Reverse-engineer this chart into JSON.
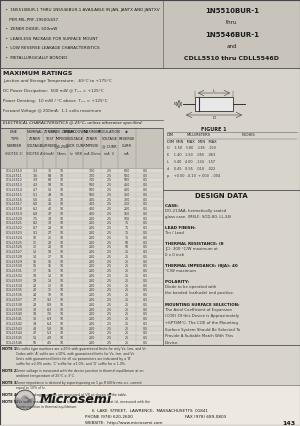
{
  "title_right_lines": [
    "1N5510BUR-1",
    "thru",
    "1N5546BUR-1",
    "and",
    "CDLL5510 thru CDLL5546D"
  ],
  "bullets": [
    "  •  1N5510BUR-1 THRU 1N5546BUR-1 AVAILABLE IN JAN, JANTX AND JANTXV",
    "     PER MIL-PRF-19500/437",
    "  •  ZENER DIODE, 500mW",
    "  •  LEADLESS PACKAGE FOR SURFACE MOUNT",
    "  •  LOW REVERSE LEAKAGE CHARACTERISTICS",
    "  •  METALLURGICALLY BONDED"
  ],
  "max_ratings_title": "MAXIMUM RATINGS",
  "max_ratings": [
    "Junction and Storage Temperature:  -65°C to +175°C",
    "DC Power Dissipation:  500 mW @ Tₘₓ = +125°C",
    "Power Derating:  10 mW / °C above  Tₘₓ = +125°C",
    "Forward Voltage @ 200mA:  1.1 volts maximum"
  ],
  "elec_char_title": "ELECTRICAL CHARACTERISTICS @ 25°C, unless otherwise specified.",
  "col_headers_line1": [
    "LINE",
    "NOMINAL",
    "ZENER",
    "KNEE ZENER",
    "BREAKDOWN VOLTAGE",
    "MAXIMUM",
    "REGULATION",
    "d.c. MAX"
  ],
  "col_headers_line2": [
    "TYPE",
    "ZENER",
    "TEST",
    "IMPEDANCE",
    "INCREMENTAL CURRENT",
    "ZENER",
    "VOLTAGE",
    "REVERSE"
  ],
  "col_headers_line3": [
    "NUMBER",
    "VOLTAGE",
    "CURRENT",
    "@0.25 Iz MAX",
    "",
    "IMPEDANCE",
    "@ CURRENT",
    "CURRENT"
  ],
  "col_headers_units": [
    "",
    "(VOLTS)",
    "Iz(mA)",
    "Ohms",
    "Iz  VBR(VOLTS)",
    "mA  Ohms",
    "mA  V",
    "mA"
  ],
  "design_data_title": "DESIGN DATA",
  "case_text": "CASE: DO-213AA, hermetically sealed\nglass case. (MELF, SOD-80, LL-34)",
  "lead_finish_text": "LEAD FINISH: Tin / Lead",
  "thermal_res_text": "THERMAL RESISTANCE: (θJC):\n300 °C/W maximum at 0 x 0 inch",
  "thermal_imp_text": "THERMAL IMPEDANCE: (θJA): 40\n°C/W maximum",
  "polarity_text": "POLARITY: Diode to be operated with\nthe banded (cathode) end positive.",
  "mounting_text": "MOUNTING SURFACE SELECTION:\nThe Axial Coefficient of Expansion\n(COE) Of this Device is Approximately\n+6PTSM°C. The COE of the Mounting\nSurface System Should Be Selected To\nProvide A Suitable Match With This\nDevice.",
  "figure_label": "FIGURE 1",
  "dim_header": [
    "DIM",
    "MILLIMETERS",
    "INCHES"
  ],
  "dim_header2": [
    "",
    "MIN",
    "MAX",
    "MIN",
    "MAX"
  ],
  "dim_rows": [
    [
      "D",
      "3.50",
      "3.80",
      ".138",
      ".150"
    ],
    [
      "E",
      "1.40",
      "1.60",
      ".055",
      ".063"
    ],
    [
      "L",
      "3.40",
      "4.00",
      ".134",
      ".157"
    ],
    [
      "d",
      "0.45",
      "0.55",
      ".018",
      ".022"
    ],
    [
      "p",
      "+0.00",
      "-0.10",
      "+.000",
      "-.004"
    ]
  ],
  "footer_address": "6  LAKE  STREET,  LAWRENCE,  MASSACHUSETTS  01841",
  "footer_phone": "PHONE (978) 620-2600",
  "footer_fax": "FAX (978) 689-0803",
  "footer_website": "WEBSITE:  http://www.microsemi.com",
  "page_number": "143",
  "notes": [
    [
      "NOTE 1",
      "No suffix type numbers are ±20% with guaranteed limits for only Vz, Izm, and Vr. Codes with 'A' suffix are ±10%, with guaranteed limits for Vz, Izm, and Vr. Units with guaranteed limits for all six parameters are indicated by a 'B' suffix for ±2.0% units. 'C' suffix for ±1.0%, and 'D' suffix for ± 1.0%."
    ],
    [
      "NOTE 2",
      "Zener voltage is measured with the device junction in thermal equilibrium at an ambient temperature of 25°C ± 3°C."
    ],
    [
      "NOTE 3",
      "Zener impedance is derived by superimposing on 1 µs R 60Hz rms a.c. current equal to 10% of Iz."
    ],
    [
      "NOTE 4",
      "Reverse leakage currents are measured at VR as shown on the table."
    ],
    [
      "NOTE 5",
      "ΔVz is the maximum difference between Vz at Izm and Vz at Izl, measured\nwith the device junction in thermal equilibrium."
    ]
  ],
  "table_rows": [
    [
      "CDLL5510",
      "3.3",
      "76",
      "10",
      "700",
      "0.3",
      "2.5 0.25",
      "600 3.8",
      "1.0",
      "600",
      "0.5"
    ],
    [
      "CDLL5511",
      "3.6",
      "69",
      "10",
      "700",
      "0.3",
      "2.5 0.25",
      "550 4.1",
      "1.0",
      "550",
      "0.5"
    ],
    [
      "CDLL5512",
      "3.9",
      "64",
      "10",
      "700",
      "0.3",
      "2.5 0.25",
      "500 4.5",
      "1.0",
      "500",
      "0.5"
    ],
    [
      "CDLL5513",
      "4.3",
      "58",
      "10",
      "500",
      "0.3",
      "2.5 0.25",
      "450 4.9",
      "1.0",
      "450",
      "0.5"
    ],
    [
      "CDLL5514",
      "4.7",
      "53",
      "10",
      "500",
      "0.3",
      "2.5 0.25",
      "400 5.4",
      "1.0",
      "400",
      "0.5"
    ],
    [
      "CDLL5515",
      "5.1",
      "49",
      "10",
      "500",
      "0.3",
      "2.5 0.25",
      "350 5.9",
      "1.0",
      "350",
      "0.5"
    ],
    [
      "CDLL5516",
      "5.6",
      "45",
      "10",
      "400",
      "0.3",
      "2.5 0.25",
      "300 6.4",
      "1.0",
      "300",
      "0.5"
    ],
    [
      "CDLL5517",
      "6.0",
      "41",
      "10",
      "400",
      "0.3",
      "2.5 0.25",
      "250 6.9",
      "1.0",
      "250",
      "0.5"
    ],
    [
      "CDLL5518",
      "6.2",
      "40",
      "10",
      "400",
      "0.3",
      "2.5 0.25",
      "200 7.1",
      "1.0",
      "200",
      "0.5"
    ],
    [
      "CDLL5519",
      "6.8",
      "37",
      "10",
      "400",
      "0.3",
      "2.5 0.25",
      "150 7.8",
      "1.0",
      "150",
      "0.5"
    ],
    [
      "CDLL5520",
      "7.5",
      "34",
      "10",
      "200",
      "0.3",
      "2.5 0.25",
      "100 8.6",
      "1.0",
      "100",
      "0.5"
    ],
    [
      "CDLL5521",
      "8.2",
      "30",
      "10",
      "200",
      "0.3",
      "2.5 0.25",
      "75 9.4",
      "1.0",
      "75",
      "0.5"
    ],
    [
      "CDLL5522",
      "8.7",
      "28",
      "10",
      "200",
      "0.3",
      "2.5 0.25",
      "75 10.0",
      "1.0",
      "75",
      "0.5"
    ],
    [
      "CDLL5523",
      "9.1",
      "27",
      "10",
      "200",
      "0.3",
      "2.5 0.25",
      "75 10.5",
      "1.0",
      "75",
      "0.5"
    ],
    [
      "CDLL5524",
      "10",
      "25",
      "10",
      "200",
      "0.3",
      "2.5 0.25",
      "75 11.5",
      "1.0",
      "75",
      "0.5"
    ],
    [
      "CDLL5525",
      "11",
      "22",
      "10",
      "200",
      "0.3",
      "2.5 0.25",
      "50 12.7",
      "1.0",
      "50",
      "0.5"
    ],
    [
      "CDLL5526",
      "12",
      "20",
      "10",
      "200",
      "0.3",
      "2.5 0.25",
      "50 13.8",
      "1.0",
      "50",
      "0.5"
    ],
    [
      "CDLL5527",
      "13",
      "18",
      "10",
      "200",
      "0.3",
      "2.5 0.25",
      "25 15.0",
      "1.0",
      "25",
      "0.5"
    ],
    [
      "CDLL5528",
      "14",
      "17",
      "10",
      "200",
      "0.3",
      "2.5 0.25",
      "25 16.1",
      "1.0",
      "25",
      "0.5"
    ],
    [
      "CDLL5529",
      "15",
      "16",
      "10",
      "200",
      "0.3",
      "2.5 0.25",
      "25 17.3",
      "1.0",
      "25",
      "0.5"
    ],
    [
      "CDLL5530",
      "16",
      "15",
      "10",
      "200",
      "0.3",
      "2.5 0.25",
      "25 18.4",
      "1.0",
      "25",
      "0.5"
    ],
    [
      "CDLL5531",
      "17",
      "15",
      "10",
      "200",
      "0.3",
      "2.5 0.25",
      "25 19.6",
      "1.0",
      "25",
      "0.5"
    ],
    [
      "CDLL5532",
      "18",
      "13",
      "10",
      "200",
      "0.3",
      "2.5 0.25",
      "25 20.8",
      "1.0",
      "25",
      "0.5"
    ],
    [
      "CDLL5533",
      "19",
      "13",
      "10",
      "200",
      "0.3",
      "2.5 0.25",
      "25 21.9",
      "1.0",
      "25",
      "0.5"
    ],
    [
      "CDLL5534",
      "20",
      "12",
      "10",
      "200",
      "0.3",
      "2.5 0.25",
      "25 23.0",
      "1.0",
      "25",
      "0.5"
    ],
    [
      "CDLL5535",
      "22",
      "11",
      "10",
      "200",
      "0.3",
      "2.5 0.25",
      "25 25.3",
      "1.0",
      "25",
      "0.5"
    ],
    [
      "CDLL5536",
      "24",
      "10",
      "10",
      "200",
      "0.3",
      "2.5 0.25",
      "25 27.6",
      "1.0",
      "25",
      "0.5"
    ],
    [
      "CDLL5537",
      "27",
      "9.2",
      "10",
      "200",
      "0.3",
      "2.5 0.25",
      "25 31.1",
      "1.0",
      "25",
      "0.5"
    ],
    [
      "CDLL5538",
      "28",
      "8.9",
      "10",
      "200",
      "0.3",
      "2.5 0.25",
      "25 32.2",
      "1.0",
      "25",
      "0.5"
    ],
    [
      "CDLL5539",
      "30",
      "8.3",
      "10",
      "200",
      "0.3",
      "2.5 0.25",
      "25 34.5",
      "1.0",
      "25",
      "0.5"
    ],
    [
      "CDLL5540",
      "33",
      "7.6",
      "10",
      "200",
      "0.3",
      "2.5 0.25",
      "25 38.0",
      "1.0",
      "25",
      "0.5"
    ],
    [
      "CDLL5541",
      "36",
      "6.9",
      "10",
      "200",
      "0.3",
      "2.5 0.25",
      "25 41.4",
      "1.0",
      "25",
      "0.5"
    ],
    [
      "CDLL5542",
      "39",
      "6.4",
      "10",
      "200",
      "0.3",
      "2.5 0.25",
      "25 44.8",
      "1.0",
      "25",
      "0.5"
    ],
    [
      "CDLL5543",
      "43",
      "5.8",
      "10",
      "200",
      "0.3",
      "2.5 0.25",
      "25 49.5",
      "1.0",
      "25",
      "0.5"
    ],
    [
      "CDLL5544",
      "47",
      "5.3",
      "10",
      "200",
      "0.3",
      "2.5 0.25",
      "25 54.1",
      "1.0",
      "25",
      "0.5"
    ],
    [
      "CDLL5545",
      "51",
      "4.9",
      "10",
      "200",
      "0.3",
      "2.5 0.25",
      "25 58.7",
      "1.0",
      "25",
      "0.5"
    ],
    [
      "CDLL5546",
      "56",
      "4.5",
      "10",
      "200",
      "0.3",
      "2.5 0.25",
      "25 64.4",
      "1.0",
      "25",
      "0.5"
    ]
  ],
  "bg_light": "#d8d4cc",
  "bg_medium": "#c8c4bc",
  "bg_white": "#f4f2ee",
  "border_color": "#888888",
  "text_dark": "#1a1a1a",
  "text_medium": "#333333"
}
